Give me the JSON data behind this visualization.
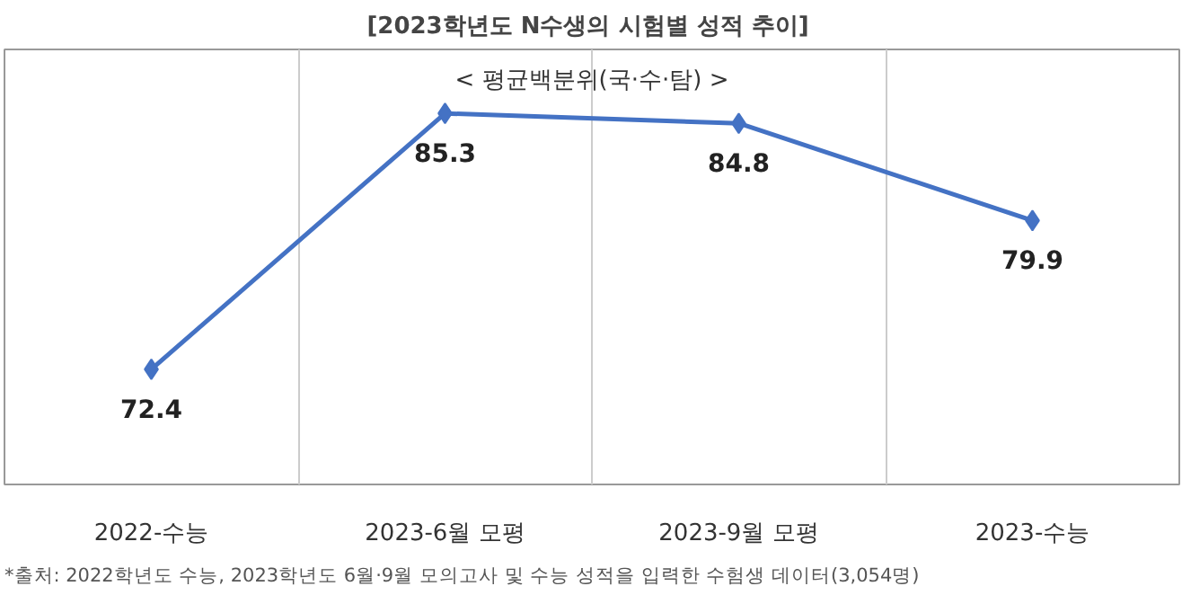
{
  "chart_data": {
    "type": "line",
    "title": "[2023학년도  N수생의 시험별 성적 추이]",
    "subtitle": "< 평균백분위(국·수·탐) >",
    "categories": [
      "2022-수능",
      "2023-6월 모평",
      "2023-9월 모평",
      "2023-수능"
    ],
    "series": [
      {
        "color": "#4472c4",
        "values": [
          72.4,
          85.3,
          84.8,
          79.9
        ]
      }
    ],
    "data_labels": true,
    "marker": "diamond",
    "line_style": "solid",
    "grid": "x",
    "annotations": [
      "*출처: 2022학년도 수능, 2023학년도 6월·9월 모의고사 및 수능 성적을 입력한 수험생 데이터(3,054명)"
    ]
  }
}
